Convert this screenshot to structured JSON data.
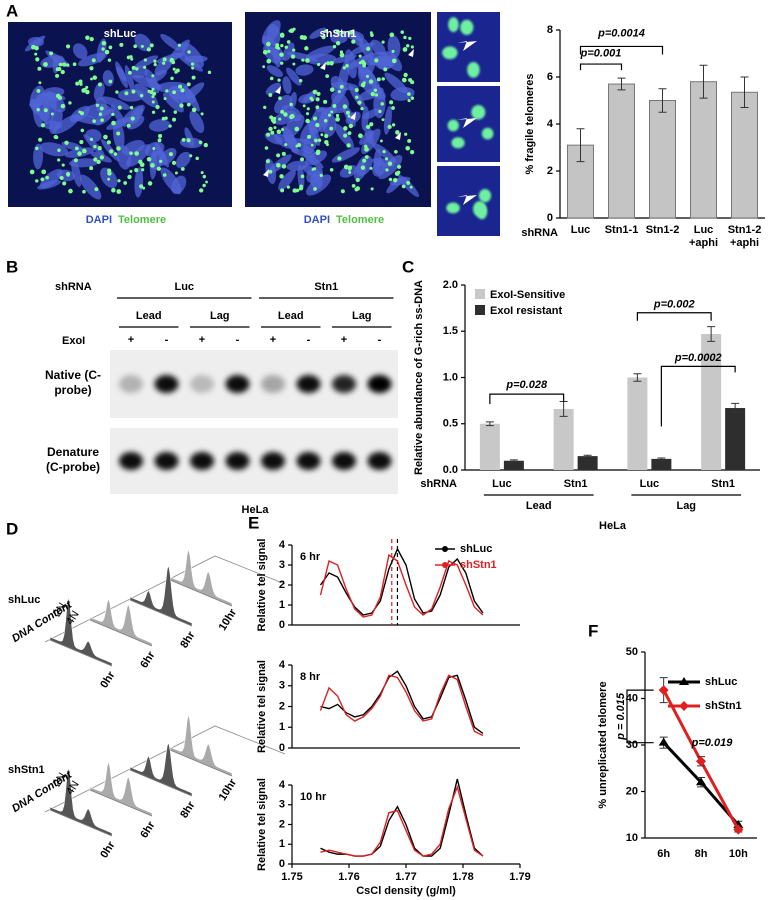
{
  "panel_labels": [
    "A",
    "B",
    "C",
    "D",
    "E",
    "F"
  ],
  "panel_a": {
    "images": [
      {
        "title": "shLuc",
        "stain_labels": [
          "DAPI",
          "Telomere"
        ]
      },
      {
        "title": "shStn1",
        "stain_labels": [
          "DAPI",
          "Telomere"
        ]
      }
    ]
  },
  "panel_b": {
    "row_prefix": "shRNA",
    "groups": [
      "Luc",
      "Stn1"
    ],
    "strands": [
      "Lead",
      "Lag",
      "Lead",
      "Lag"
    ],
    "enzyme": "ExoI",
    "lanes": [
      "+",
      "-",
      "+",
      "-",
      "+",
      "-",
      "+",
      "-"
    ],
    "rows": [
      "Native (C-probe)",
      "Denature (C-probe)"
    ],
    "cell_line": "HeLa"
  },
  "panel_d": {
    "samples": [
      "shLuc",
      "shStn1"
    ],
    "axis_label": "DNA Content",
    "ploidy": [
      "2N",
      "4N"
    ],
    "times": [
      "0hr",
      "6hr",
      "8hr",
      "10hr"
    ]
  },
  "chart_data": [
    {
      "type": "bar",
      "ylabel": "% fragile telomeres",
      "x_prefix": "shRNA",
      "categories": [
        "Luc",
        "Stn1-1",
        "Stn1-2",
        "Luc +aphi",
        "Stn1-2 +aphi"
      ],
      "values": [
        3.1,
        5.7,
        5.0,
        5.8,
        5.35
      ],
      "errors": [
        0.7,
        0.25,
        0.5,
        0.7,
        0.65
      ],
      "color": "#c4c4c4",
      "ylim": [
        0,
        8
      ],
      "yticks": [
        0,
        2,
        4,
        6,
        8
      ],
      "annotations": [
        "p=0.0014",
        "p=0.001"
      ]
    },
    {
      "type": "grouped_bar",
      "ylabel": "Relative abundance of G-rich ss-DNA",
      "x_prefix": "shRNA",
      "categories": [
        "Luc",
        "Stn1",
        "Luc",
        "Stn1"
      ],
      "groups": [
        "Lead",
        "Lag"
      ],
      "footer": "HeLa",
      "series": [
        {
          "name": "ExoI-Sensitive",
          "color": "#c8c8c8",
          "values": [
            0.5,
            0.66,
            1.0,
            1.47
          ],
          "errors": [
            0.02,
            0.08,
            0.04,
            0.08
          ]
        },
        {
          "name": "ExoI resistant",
          "color": "#2e2e2e",
          "values": [
            0.1,
            0.15,
            0.12,
            0.67
          ],
          "errors": [
            0.01,
            0.01,
            0.01,
            0.05
          ]
        }
      ],
      "ylim": [
        0,
        2
      ],
      "yticks": [
        {
          "value": 0,
          "label": "0.0"
        },
        0.5,
        {
          "value": 1,
          "label": "1.0"
        },
        1.5,
        {
          "value": 2,
          "label": "2.0"
        }
      ],
      "annotations": [
        "p=0.028",
        "p=0.002",
        "p=0.0002"
      ]
    },
    {
      "type": "line",
      "label": "6 hr",
      "ylabel": "Relative tel signal",
      "legend": true,
      "x": [
        1.755,
        1.7565,
        1.758,
        1.7595,
        1.761,
        1.7625,
        1.764,
        1.7655,
        1.767,
        1.7685,
        1.77,
        1.7715,
        1.773,
        1.7745,
        1.776,
        1.7775,
        1.779,
        1.7805,
        1.782,
        1.7835
      ],
      "series": [
        {
          "name": "shLuc",
          "color": "#000000",
          "values": [
            2.0,
            2.6,
            2.4,
            1.6,
            0.9,
            0.5,
            0.6,
            1.2,
            2.8,
            3.8,
            3.0,
            1.3,
            0.6,
            0.7,
            1.5,
            2.9,
            3.3,
            2.6,
            1.2,
            0.6
          ]
        },
        {
          "name": "shStn1",
          "color": "#e02020",
          "values": [
            1.5,
            3.2,
            3.0,
            1.8,
            0.8,
            0.4,
            0.5,
            1.4,
            3.5,
            3.2,
            2.0,
            0.9,
            0.5,
            0.8,
            1.9,
            3.2,
            3.0,
            2.0,
            0.9,
            0.5
          ]
        }
      ],
      "markers": [
        {
          "x": 1.7675,
          "color": "#e02020"
        },
        {
          "x": 1.7685,
          "color": "#000000"
        }
      ],
      "xlim": [
        1.75,
        1.79
      ],
      "ylim": [
        0,
        4
      ],
      "yticks": [
        0,
        1,
        2,
        3,
        4
      ]
    },
    {
      "type": "line",
      "label": "8 hr",
      "ylabel": "Relative tel signal",
      "x": [
        1.755,
        1.7565,
        1.758,
        1.7595,
        1.761,
        1.7625,
        1.764,
        1.7655,
        1.767,
        1.7685,
        1.77,
        1.7715,
        1.773,
        1.7745,
        1.776,
        1.7775,
        1.779,
        1.7805,
        1.782,
        1.7835
      ],
      "series": [
        {
          "name": "shLuc",
          "color": "#000000",
          "values": [
            2.0,
            1.9,
            2.1,
            1.7,
            1.5,
            1.6,
            2.0,
            2.6,
            3.4,
            3.7,
            3.0,
            2.0,
            1.4,
            1.5,
            2.4,
            3.4,
            3.5,
            2.3,
            1.0,
            0.7
          ]
        },
        {
          "name": "shStn1",
          "color": "#e02020",
          "values": [
            1.8,
            2.9,
            2.5,
            1.6,
            1.3,
            1.5,
            1.9,
            2.5,
            3.5,
            3.4,
            2.7,
            1.8,
            1.3,
            1.4,
            2.6,
            3.5,
            3.3,
            2.0,
            0.8,
            0.6
          ]
        }
      ],
      "xlim": [
        1.75,
        1.79
      ],
      "ylim": [
        0,
        4
      ],
      "yticks": [
        0,
        1,
        2,
        3,
        4
      ]
    },
    {
      "type": "line",
      "label": "10 hr",
      "ylabel": "Relative tel signal",
      "xlabel": "CsCl density (g/ml)",
      "x": [
        1.755,
        1.7565,
        1.758,
        1.7595,
        1.761,
        1.7625,
        1.764,
        1.7655,
        1.767,
        1.7685,
        1.77,
        1.7715,
        1.773,
        1.7745,
        1.776,
        1.7775,
        1.779,
        1.7805,
        1.782,
        1.7835
      ],
      "series": [
        {
          "name": "shLuc",
          "color": "#000000",
          "values": [
            0.8,
            0.6,
            0.5,
            0.5,
            0.4,
            0.4,
            0.5,
            0.9,
            2.2,
            2.9,
            2.0,
            0.8,
            0.4,
            0.4,
            0.8,
            2.5,
            4.3,
            2.5,
            0.8,
            0.4
          ]
        },
        {
          "name": "shStn1",
          "color": "#e02020",
          "values": [
            0.6,
            0.7,
            0.6,
            0.5,
            0.4,
            0.4,
            0.5,
            1.1,
            2.6,
            2.7,
            1.7,
            0.7,
            0.4,
            0.5,
            1.0,
            2.8,
            3.9,
            2.3,
            0.7,
            0.4
          ]
        }
      ],
      "xlim": [
        1.75,
        1.79
      ],
      "xticks": [
        1.75,
        1.76,
        1.77,
        1.78,
        1.79
      ],
      "ylim": [
        0,
        4
      ],
      "yticks": [
        0,
        1,
        2,
        3,
        4
      ]
    },
    {
      "type": "line_errors",
      "ylabel": "% unreplicated telomere",
      "categories": [
        "6h",
        "8h",
        "10h"
      ],
      "series": [
        {
          "name": "shLuc",
          "color": "#000000",
          "values": [
            30.5,
            22,
            12.8
          ],
          "errors": [
            1.2,
            1,
            0.8
          ]
        },
        {
          "name": "shStn1",
          "color": "#e02020",
          "values": [
            41.8,
            26.5,
            11.8
          ],
          "errors": [
            2.7,
            1,
            0.5
          ]
        }
      ],
      "ylim": [
        10,
        50
      ],
      "yticks": [
        10,
        20,
        30,
        40,
        50
      ],
      "annotations": [
        "p = 0.015",
        "p=0.019"
      ]
    }
  ]
}
